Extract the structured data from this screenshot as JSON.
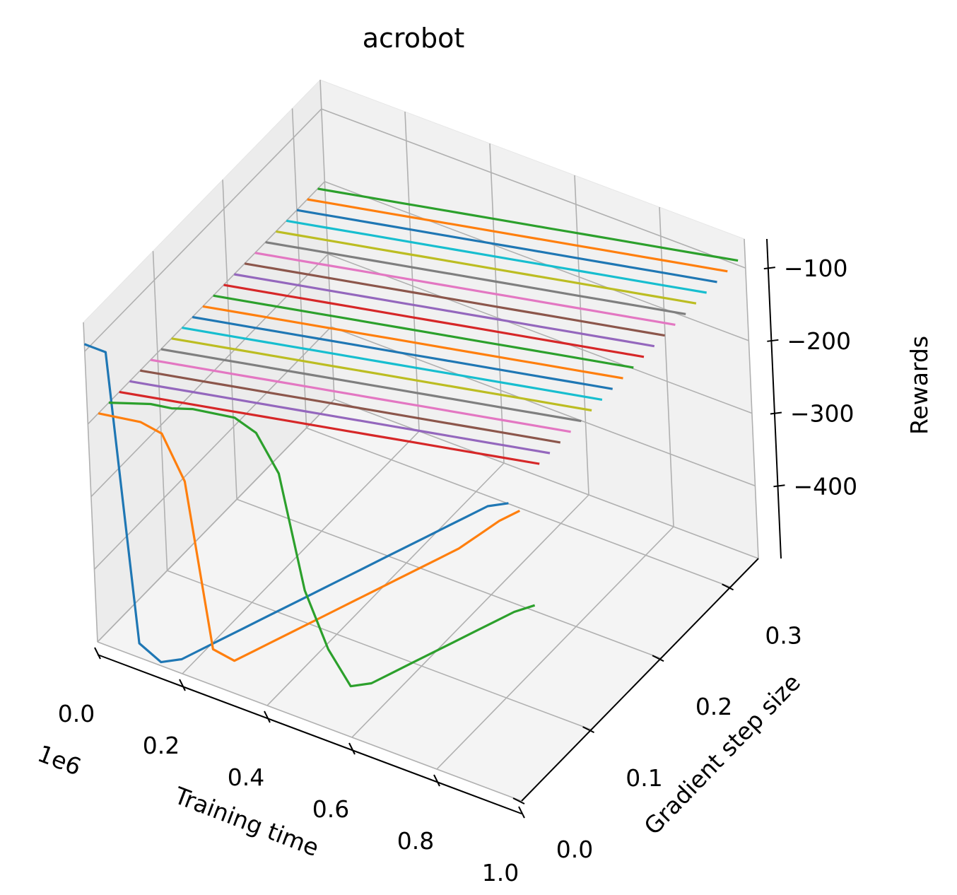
{
  "chart_data": {
    "type": "line",
    "projection": "3d",
    "title": "acrobot",
    "xlabel": "Training time",
    "ylabel": "Gradient step size",
    "zlabel": "Rewards",
    "x_offset_label": "1e6",
    "xlim": [
      0,
      1.0
    ],
    "ylim": [
      0,
      0.34
    ],
    "zlim": [
      -500,
      -60
    ],
    "x_ticks": [
      0.0,
      0.2,
      0.4,
      0.6,
      0.8,
      1.0
    ],
    "x_tick_labels": [
      "0.0",
      "0.2",
      "0.4",
      "0.6",
      "0.8",
      "1.0"
    ],
    "y_ticks": [
      0.0,
      0.1,
      0.2,
      0.3
    ],
    "y_tick_labels": [
      "0.0",
      "0.1",
      "0.2",
      "0.3"
    ],
    "z_ticks": [
      -100,
      -200,
      -300,
      -400
    ],
    "z_tick_labels": [
      "−100",
      "−200",
      "−300",
      "−400"
    ],
    "grid": true,
    "x": [
      0.0,
      0.05,
      0.1,
      0.15,
      0.2,
      0.25,
      0.3,
      0.35,
      0.4,
      0.45,
      0.5,
      0.55,
      0.6,
      0.65,
      0.7,
      0.75,
      0.8,
      0.85,
      0.9,
      0.95,
      1.0
    ],
    "series": [
      {
        "y": 0.0,
        "color": "#1f77b4",
        "z": [
          -90,
          -90,
          -480,
          -495,
          -480,
          -455,
          -430,
          -405,
          -380,
          -355,
          -330,
          -305,
          -280,
          -255,
          -230,
          -205,
          -180,
          -155,
          -130,
          -105,
          -90
        ]
      },
      {
        "y": 0.015,
        "color": "#ff7f0e",
        "z": [
          -200,
          -195,
          -190,
          -195,
          -250,
          -470,
          -475,
          -450,
          -425,
          -400,
          -375,
          -350,
          -325,
          -300,
          -275,
          -250,
          -225,
          -200,
          -170,
          -140,
          -115
        ]
      },
      {
        "y": 0.03,
        "color": "#2ca02c",
        "z": [
          -200,
          -190,
          -180,
          -175,
          -165,
          -160,
          -155,
          -165,
          -210,
          -360,
          -430,
          -470,
          -455,
          -430,
          -405,
          -380,
          -355,
          -330,
          -305,
          -280,
          -260
        ]
      },
      {
        "y": 0.045,
        "color": "#d62728",
        "z": [
          -200,
          -194,
          -188,
          -182,
          -176,
          -170,
          -164,
          -158,
          -152,
          -146,
          -140,
          -134,
          -128,
          -122,
          -116,
          -110,
          -104,
          -98,
          -92,
          -86,
          -80
        ]
      },
      {
        "y": 0.06,
        "color": "#9467bd",
        "z": [
          -200,
          -194,
          -188,
          -182,
          -176,
          -170,
          -164,
          -158,
          -152,
          -146,
          -140,
          -134,
          -128,
          -122,
          -116,
          -110,
          -104,
          -98,
          -92,
          -86,
          -80
        ]
      },
      {
        "y": 0.075,
        "color": "#8c564b",
        "z": [
          -200,
          -194,
          -188,
          -182,
          -176,
          -170,
          -164,
          -158,
          -152,
          -146,
          -140,
          -134,
          -128,
          -122,
          -116,
          -110,
          -104,
          -98,
          -92,
          -86,
          -80
        ]
      },
      {
        "y": 0.09,
        "color": "#e377c2",
        "z": [
          -200,
          -194,
          -188,
          -182,
          -176,
          -170,
          -164,
          -158,
          -152,
          -146,
          -140,
          -134,
          -128,
          -122,
          -116,
          -110,
          -104,
          -98,
          -92,
          -86,
          -80
        ]
      },
      {
        "y": 0.105,
        "color": "#7f7f7f",
        "z": [
          -200,
          -194,
          -188,
          -182,
          -176,
          -170,
          -164,
          -158,
          -152,
          -146,
          -140,
          -134,
          -128,
          -122,
          -116,
          -110,
          -104,
          -98,
          -92,
          -86,
          -80
        ]
      },
      {
        "y": 0.12,
        "color": "#bcbd22",
        "z": [
          -200,
          -194,
          -188,
          -182,
          -176,
          -170,
          -164,
          -158,
          -152,
          -146,
          -140,
          -134,
          -128,
          -122,
          -116,
          -110,
          -104,
          -98,
          -92,
          -86,
          -80
        ]
      },
      {
        "y": 0.135,
        "color": "#17becf",
        "z": [
          -200,
          -194,
          -188,
          -182,
          -176,
          -170,
          -164,
          -158,
          -152,
          -146,
          -140,
          -134,
          -128,
          -122,
          -116,
          -110,
          -104,
          -98,
          -92,
          -86,
          -80
        ]
      },
      {
        "y": 0.15,
        "color": "#1f77b4",
        "z": [
          -200,
          -194,
          -188,
          -182,
          -176,
          -170,
          -164,
          -158,
          -152,
          -146,
          -140,
          -134,
          -128,
          -122,
          -116,
          -110,
          -104,
          -98,
          -92,
          -86,
          -80
        ]
      },
      {
        "y": 0.165,
        "color": "#ff7f0e",
        "z": [
          -200,
          -194,
          -188,
          -182,
          -176,
          -170,
          -164,
          -158,
          -152,
          -146,
          -140,
          -134,
          -128,
          -122,
          -116,
          -110,
          -104,
          -98,
          -92,
          -86,
          -80
        ]
      },
      {
        "y": 0.18,
        "color": "#2ca02c",
        "z": [
          -200,
          -194,
          -188,
          -182,
          -176,
          -170,
          -164,
          -158,
          -152,
          -146,
          -140,
          -134,
          -128,
          -122,
          -116,
          -110,
          -104,
          -98,
          -92,
          -86,
          -80
        ]
      },
      {
        "y": 0.195,
        "color": "#d62728",
        "z": [
          -200,
          -194,
          -188,
          -182,
          -176,
          -170,
          -164,
          -158,
          -152,
          -146,
          -140,
          -134,
          -128,
          -122,
          -116,
          -110,
          -104,
          -98,
          -92,
          -86,
          -80
        ]
      },
      {
        "y": 0.21,
        "color": "#9467bd",
        "z": [
          -200,
          -194,
          -188,
          -182,
          -176,
          -170,
          -164,
          -158,
          -152,
          -146,
          -140,
          -134,
          -128,
          -122,
          -116,
          -110,
          -104,
          -98,
          -92,
          -86,
          -80
        ]
      },
      {
        "y": 0.225,
        "color": "#8c564b",
        "z": [
          -200,
          -194,
          -188,
          -182,
          -176,
          -170,
          -164,
          -158,
          -152,
          -146,
          -140,
          -134,
          -128,
          -122,
          -116,
          -110,
          -104,
          -98,
          -92,
          -86,
          -80
        ]
      },
      {
        "y": 0.24,
        "color": "#e377c2",
        "z": [
          -200,
          -194,
          -188,
          -182,
          -176,
          -170,
          -164,
          -158,
          -152,
          -146,
          -140,
          -134,
          -128,
          -122,
          -116,
          -110,
          -104,
          -98,
          -92,
          -86,
          -80
        ]
      },
      {
        "y": 0.255,
        "color": "#7f7f7f",
        "z": [
          -200,
          -194,
          -188,
          -182,
          -176,
          -170,
          -164,
          -158,
          -152,
          -146,
          -140,
          -134,
          -128,
          -122,
          -116,
          -110,
          -104,
          -98,
          -92,
          -86,
          -80
        ]
      },
      {
        "y": 0.27,
        "color": "#bcbd22",
        "z": [
          -200,
          -194,
          -188,
          -182,
          -176,
          -170,
          -164,
          -158,
          -152,
          -146,
          -140,
          -134,
          -128,
          -122,
          -116,
          -110,
          -104,
          -98,
          -92,
          -86,
          -80
        ]
      },
      {
        "y": 0.285,
        "color": "#17becf",
        "z": [
          -200,
          -194,
          -188,
          -182,
          -176,
          -170,
          -164,
          -158,
          -152,
          -146,
          -140,
          -134,
          -128,
          -122,
          -116,
          -110,
          -104,
          -98,
          -92,
          -86,
          -80
        ]
      },
      {
        "y": 0.3,
        "color": "#1f77b4",
        "z": [
          -200,
          -194,
          -188,
          -182,
          -176,
          -170,
          -164,
          -158,
          -152,
          -146,
          -140,
          -134,
          -128,
          -122,
          -116,
          -110,
          -104,
          -98,
          -92,
          -86,
          -80
        ]
      },
      {
        "y": 0.315,
        "color": "#ff7f0e",
        "z": [
          -200,
          -194,
          -188,
          -182,
          -176,
          -170,
          -164,
          -158,
          -152,
          -146,
          -140,
          -134,
          -128,
          -122,
          -116,
          -110,
          -104,
          -98,
          -92,
          -86,
          -80
        ]
      },
      {
        "y": 0.33,
        "color": "#2ca02c",
        "z": [
          -200,
          -194,
          -188,
          -182,
          -176,
          -170,
          -164,
          -158,
          -152,
          -146,
          -140,
          -134,
          -128,
          -122,
          -116,
          -110,
          -104,
          -98,
          -92,
          -86,
          -80
        ]
      }
    ]
  }
}
